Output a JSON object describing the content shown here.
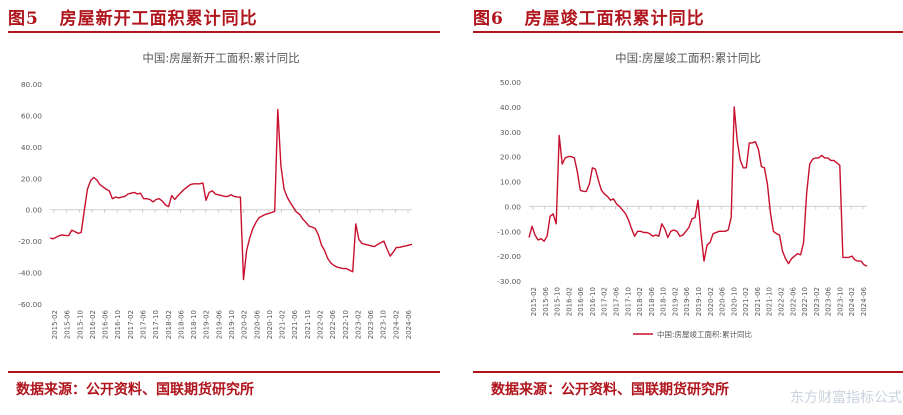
{
  "figures": [
    {
      "figure_label": "图5",
      "figure_title": "房屋新开工面积累计同比",
      "source": "数据来源：公开资料、国联期货研究所"
    },
    {
      "figure_label": "图6",
      "figure_title": "房屋竣工面积累计同比",
      "source": "数据来源：公开资料、国联期货研究所"
    }
  ],
  "watermark": "东方财富指标公式网",
  "chart_data": [
    {
      "type": "line",
      "title": "中国:房屋新开工面积:累计同比",
      "ylim": [
        -60,
        80
      ],
      "ytick_labels": [
        "80.00",
        "60.00",
        "40.00",
        "20.00",
        "0.00",
        "-20.00",
        "-40.00",
        "-60.00"
      ],
      "yticks": [
        80,
        60,
        40,
        20,
        0,
        -20,
        -40,
        -60
      ],
      "x_tick_labels": [
        "2015-02",
        "2015-06",
        "2015-10",
        "2016-02",
        "2016-06",
        "2016-10",
        "2017-02",
        "2017-06",
        "2017-10",
        "2018-02",
        "2018-06",
        "2018-10",
        "2019-02",
        "2019-06",
        "2019-10",
        "2020-02",
        "2020-06",
        "2020-10",
        "2021-02",
        "2021-06",
        "2021-10",
        "2022-02",
        "2022-06",
        "2022-10",
        "2023-02",
        "2023-06",
        "2023-10",
        "2024-02",
        "2024-06"
      ],
      "grid": false,
      "legend": null,
      "color": "#c8102e",
      "series": [
        {
          "values": [
            -18,
            -18.5,
            -17.5,
            -16.5,
            -16,
            -16.5,
            -16.5,
            -13,
            -14,
            -15,
            -14.5,
            -0.5,
            13,
            18.5,
            20.5,
            19,
            16,
            14.5,
            13,
            12,
            7,
            8,
            7.5,
            8,
            8.5,
            10,
            10.5,
            11,
            10,
            10.5,
            7,
            7,
            6.5,
            5,
            6.5,
            7,
            5.5,
            3,
            2,
            9,
            6.5,
            9,
            11,
            13,
            14.5,
            16,
            16.5,
            16.5,
            16.5,
            17,
            6,
            11,
            12,
            10,
            9.5,
            9,
            8.5,
            8.5,
            9.5,
            8.5,
            8,
            8,
            -44.5,
            -26,
            -18,
            -12,
            -8,
            -5,
            -4,
            -3,
            -2.5,
            -1.8,
            -1,
            63.7,
            28,
            13,
            8,
            4.5,
            1.5,
            -1.5,
            -3,
            -6,
            -8,
            -10.5,
            -11,
            -12,
            -16,
            -22.5,
            -26,
            -31,
            -34,
            -35.5,
            -36.5,
            -37,
            -37.5,
            -37.5,
            -38.5,
            -39.5,
            -9,
            -19,
            -21.5,
            -22,
            -22.5,
            -23,
            -23.5,
            -22,
            -21,
            -20,
            -25,
            -29.5,
            -27,
            -24,
            -24,
            -23.5,
            -23,
            -22.5,
            -22
          ]
        }
      ]
    },
    {
      "type": "line",
      "title": "中国:房屋竣工面积:累计同比",
      "ylim": [
        -30,
        50
      ],
      "ytick_labels": [
        "50.00",
        "40.00",
        "30.00",
        "20.00",
        "10.00",
        "0.00",
        "-10.00",
        "-20.00",
        "-30.00"
      ],
      "yticks": [
        50,
        40,
        30,
        20,
        10,
        0,
        -10,
        -20,
        -30
      ],
      "x_tick_labels": [
        "2015-02",
        "2015-06",
        "2015-10",
        "2016-02",
        "2016-06",
        "2016-10",
        "2017-02",
        "2017-06",
        "2017-10",
        "2018-02",
        "2018-06",
        "2018-10",
        "2019-02",
        "2019-06",
        "2019-10",
        "2020-02",
        "2020-06",
        "2020-10",
        "2021-02",
        "2021-06",
        "2021-10",
        "2022-02",
        "2022-06",
        "2022-10",
        "2023-02",
        "2023-06",
        "2023-10",
        "2024-02",
        "2024-06"
      ],
      "grid": false,
      "legend": "bottom",
      "legend_label": "中国:房屋竣工面积:累计同比",
      "color": "#c8102e",
      "series": [
        {
          "name": "中国:房屋竣工面积:累计同比",
          "values": [
            -12.5,
            -8,
            -11.5,
            -13.5,
            -13,
            -14,
            -12,
            -4,
            -3,
            -7,
            28.5,
            17,
            19.5,
            20,
            20,
            19.5,
            14,
            6.5,
            6,
            6,
            9,
            15.5,
            15,
            10.5,
            6.5,
            5,
            4,
            2.5,
            3,
            1,
            0,
            -1.5,
            -3,
            -5.5,
            -9,
            -12,
            -10,
            -10,
            -10.5,
            -10.5,
            -11,
            -12,
            -11.5,
            -12,
            -7,
            -9,
            -12.5,
            -10,
            -9.5,
            -10,
            -12,
            -11.5,
            -10,
            -8.5,
            -5,
            -4.5,
            2.5,
            -11,
            -22,
            -15.5,
            -14.5,
            -11,
            -10.5,
            -10,
            -10,
            -10,
            -9.5,
            -4.5,
            40,
            26.5,
            18.5,
            15.5,
            15.5,
            25.5,
            25.5,
            26,
            23,
            16,
            15.5,
            9,
            -2.5,
            -10,
            -11,
            -11.5,
            -18,
            -21,
            -23,
            -21,
            -20,
            -19,
            -19.5,
            -14.5,
            5,
            17,
            19,
            19.5,
            19.5,
            20.5,
            19.5,
            19.5,
            18.5,
            18.5,
            17.5,
            16.5,
            -20.5,
            -20.5,
            -20.5,
            -20,
            -21.5,
            -22,
            -22,
            -23.5,
            -24
          ]
        }
      ]
    }
  ]
}
